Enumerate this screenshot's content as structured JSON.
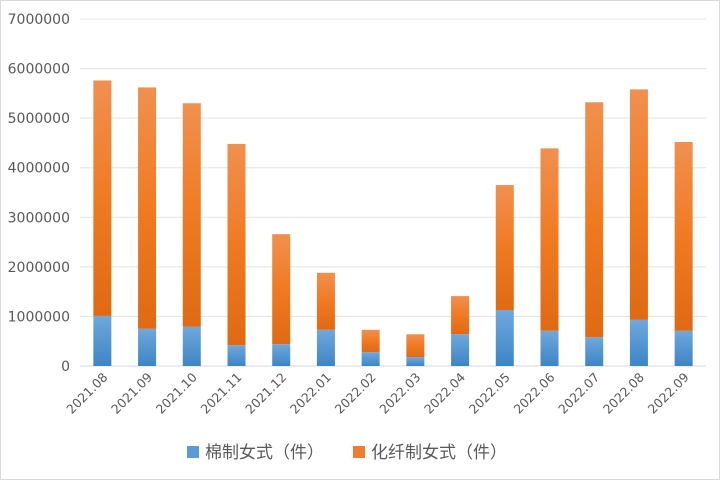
{
  "chart_data": {
    "type": "bar",
    "stacked": true,
    "title": "",
    "xlabel": "",
    "ylabel": "",
    "ylim": [
      0,
      7000000
    ],
    "yticks": [
      "0",
      "1000000",
      "2000000",
      "3000000",
      "4000000",
      "5000000",
      "6000000",
      "7000000"
    ],
    "grid": true,
    "legend_position": "bottom",
    "categories": [
      "2021.08",
      "2021.09",
      "2021.10",
      "2021.11",
      "2021.12",
      "2022.01",
      "2022.02",
      "2022.03",
      "2022.04",
      "2022.05",
      "2022.06",
      "2022.07",
      "2022.08",
      "2022.09"
    ],
    "series": [
      {
        "name": "棉制女式（件）",
        "color": "#5b9bd5",
        "values": [
          1010000,
          750000,
          790000,
          420000,
          440000,
          730000,
          280000,
          180000,
          640000,
          1130000,
          710000,
          580000,
          930000,
          710000
        ]
      },
      {
        "name": "化纤制女式（件）",
        "color": "#ed7d31",
        "values": [
          4750000,
          4870000,
          4510000,
          4060000,
          2220000,
          1150000,
          450000,
          460000,
          770000,
          2520000,
          3680000,
          4740000,
          4650000,
          3810000
        ]
      }
    ]
  }
}
